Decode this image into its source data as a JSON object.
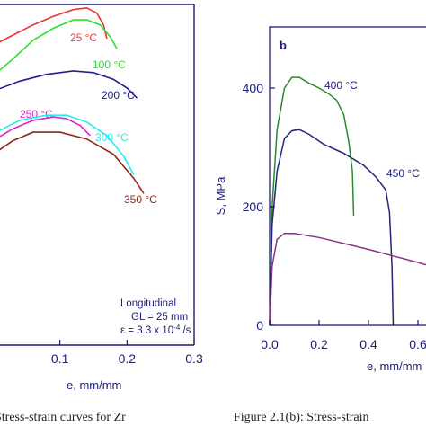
{
  "chart_data": [
    {
      "type": "line",
      "xlabel": "e, mm/mm",
      "x_ticks": [
        "0.1",
        "0.2",
        "0.3"
      ],
      "xlim": [
        0.0,
        0.3
      ],
      "annotation": [
        "Longitudinal",
        "GL = 25 mm",
        "ε = 3.3 x 10^-4 /s"
      ],
      "series": [
        {
          "name": "25 °C",
          "color": "#ee3333",
          "points": [
            [
              0.0,
              0.88
            ],
            [
              0.03,
              0.91
            ],
            [
              0.06,
              0.94
            ],
            [
              0.09,
              0.965
            ],
            [
              0.12,
              0.985
            ],
            [
              0.14,
              0.99
            ],
            [
              0.155,
              0.975
            ],
            [
              0.165,
              0.94
            ],
            [
              0.17,
              0.9
            ]
          ]
        },
        {
          "name": "100 °C",
          "color": "#33dd33",
          "points": [
            [
              0.0,
              0.79
            ],
            [
              0.03,
              0.84
            ],
            [
              0.06,
              0.895
            ],
            [
              0.09,
              0.93
            ],
            [
              0.12,
              0.955
            ],
            [
              0.14,
              0.955
            ],
            [
              0.16,
              0.94
            ],
            [
              0.175,
              0.905
            ],
            [
              0.185,
              0.87
            ]
          ]
        },
        {
          "name": "200 °C",
          "color": "#202090",
          "points": [
            [
              0.0,
              0.745
            ],
            [
              0.04,
              0.775
            ],
            [
              0.08,
              0.795
            ],
            [
              0.12,
              0.805
            ],
            [
              0.15,
              0.8
            ],
            [
              0.18,
              0.78
            ],
            [
              0.2,
              0.755
            ],
            [
              0.215,
              0.725
            ]
          ]
        },
        {
          "name": "250 °C",
          "color": "#dd22cc",
          "points": [
            [
              0.0,
              0.6
            ],
            [
              0.03,
              0.635
            ],
            [
              0.06,
              0.66
            ],
            [
              0.09,
              0.67
            ],
            [
              0.11,
              0.665
            ],
            [
              0.13,
              0.645
            ],
            [
              0.145,
              0.615
            ]
          ]
        },
        {
          "name": "300 °C",
          "color": "#22eeee",
          "points": [
            [
              0.0,
              0.62
            ],
            [
              0.04,
              0.66
            ],
            [
              0.08,
              0.675
            ],
            [
              0.11,
              0.675
            ],
            [
              0.14,
              0.655
            ],
            [
              0.17,
              0.615
            ],
            [
              0.195,
              0.555
            ],
            [
              0.21,
              0.5
            ]
          ]
        },
        {
          "name": "350 °C",
          "color": "#8b2a1a",
          "points": [
            [
              0.0,
              0.56
            ],
            [
              0.03,
              0.6
            ],
            [
              0.06,
              0.625
            ],
            [
              0.1,
              0.625
            ],
            [
              0.14,
              0.605
            ],
            [
              0.18,
              0.56
            ],
            [
              0.21,
              0.49
            ],
            [
              0.225,
              0.445
            ]
          ]
        }
      ]
    },
    {
      "type": "line",
      "panel_label": "b",
      "xlabel": "e, mm/mm",
      "ylabel": "S, MPa",
      "xlim": [
        0.0,
        0.6
      ],
      "ylim": [
        0,
        500
      ],
      "x_ticks": [
        "0.0",
        "0.2",
        "0.4",
        "0.6"
      ],
      "y_ticks": [
        "0",
        "200",
        "400"
      ],
      "series": [
        {
          "name": "400 °C",
          "color": "#2a8a2a",
          "points": [
            [
              0.0,
              0
            ],
            [
              0.01,
              200
            ],
            [
              0.03,
              330
            ],
            [
              0.06,
              400
            ],
            [
              0.09,
              418
            ],
            [
              0.12,
              418
            ],
            [
              0.16,
              408
            ],
            [
              0.2,
              400
            ],
            [
              0.24,
              390
            ],
            [
              0.27,
              380
            ],
            [
              0.3,
              355
            ],
            [
              0.32,
              310
            ],
            [
              0.335,
              260
            ],
            [
              0.34,
              185
            ]
          ]
        },
        {
          "name": "450 °C",
          "color": "#24247a",
          "points": [
            [
              0.0,
              0
            ],
            [
              0.01,
              170
            ],
            [
              0.03,
              260
            ],
            [
              0.06,
              315
            ],
            [
              0.09,
              328
            ],
            [
              0.12,
              330
            ],
            [
              0.16,
              322
            ],
            [
              0.22,
              305
            ],
            [
              0.3,
              290
            ],
            [
              0.38,
              270
            ],
            [
              0.43,
              250
            ],
            [
              0.47,
              228
            ],
            [
              0.485,
              190
            ],
            [
              0.495,
              100
            ],
            [
              0.5,
              0
            ]
          ]
        },
        {
          "name": "",
          "color": "#883388",
          "points": [
            [
              0.0,
              0
            ],
            [
              0.01,
              100
            ],
            [
              0.03,
              145
            ],
            [
              0.06,
              155
            ],
            [
              0.1,
              155
            ],
            [
              0.2,
              148
            ],
            [
              0.3,
              138
            ],
            [
              0.4,
              128
            ],
            [
              0.5,
              117
            ],
            [
              0.6,
              106
            ],
            [
              0.65,
              100
            ]
          ]
        }
      ],
      "annotations": [
        "400 °C",
        "450 °C"
      ]
    }
  ],
  "captions": {
    "left": "Stress-strain curves for Zr",
    "right": "Figure 2.1(b): Stress-strain"
  }
}
